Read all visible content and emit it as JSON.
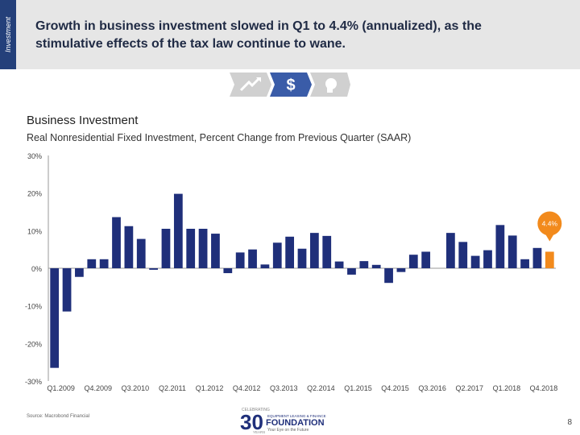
{
  "header": {
    "side_label": "Investment",
    "headline": "Growth in business investment slowed in Q1 to 4.4% (annualized), as the stimulative effects of the tax law continue to wane."
  },
  "nav": {
    "items": [
      {
        "icon": "trend-arrow-icon",
        "active": false
      },
      {
        "icon": "dollar-icon",
        "active": true
      },
      {
        "icon": "head-icon",
        "active": false
      }
    ],
    "active_color": "#3a5ca8",
    "inactive_color": "#cccccc"
  },
  "section": {
    "title": "Business Investment",
    "subtitle": "Real Nonresidential Fixed Investment, Percent Change from Previous Quarter (SAAR)"
  },
  "chart_data": {
    "type": "bar",
    "categories": [
      "Q1.2009",
      "Q2.2009",
      "Q3.2009",
      "Q4.2009",
      "Q1.2010",
      "Q2.2010",
      "Q3.2010",
      "Q4.2010",
      "Q1.2011",
      "Q2.2011",
      "Q3.2011",
      "Q4.2011",
      "Q1.2012",
      "Q2.2012",
      "Q3.2012",
      "Q4.2012",
      "Q1.2013",
      "Q2.2013",
      "Q3.2013",
      "Q4.2013",
      "Q1.2014",
      "Q2.2014",
      "Q3.2014",
      "Q4.2014",
      "Q1.2015",
      "Q2.2015",
      "Q3.2015",
      "Q4.2015",
      "Q1.2016",
      "Q2.2016",
      "Q3.2016",
      "Q4.2016",
      "Q1.2017",
      "Q2.2017",
      "Q3.2017",
      "Q4.2017",
      "Q1.2018",
      "Q2.2018",
      "Q3.2018",
      "Q4.2018",
      "Q1.2019"
    ],
    "tick_labels": [
      "Q1.2009",
      "Q4.2009",
      "Q3.2010",
      "Q2.2011",
      "Q1.2012",
      "Q4.2012",
      "Q3.2013",
      "Q2.2014",
      "Q1.2015",
      "Q4.2015",
      "Q3.2016",
      "Q2.2017",
      "Q1.2018",
      "Q4.2018"
    ],
    "values": [
      -26.5,
      -11.5,
      -2.3,
      2.4,
      2.4,
      13.6,
      11.2,
      7.8,
      -0.4,
      10.5,
      19.8,
      10.5,
      10.5,
      9.2,
      -1.3,
      4.2,
      5.0,
      1.0,
      6.8,
      8.4,
      5.2,
      9.4,
      8.6,
      1.8,
      -1.7,
      1.9,
      0.9,
      -3.9,
      -1.0,
      3.6,
      4.4,
      0,
      9.4,
      7.0,
      3.3,
      4.8,
      11.5,
      8.7,
      2.4,
      5.4,
      4.4
    ],
    "highlight_index": 40,
    "highlight_label": "4.4%",
    "y_ticks": [
      "30%",
      "20%",
      "10%",
      "0%",
      "-10%",
      "-20%",
      "-30%"
    ],
    "ylim": [
      -30,
      30
    ],
    "bar_color": "#1f2f7a",
    "highlight_color": "#f28a1c",
    "grid": false
  },
  "footer": {
    "source": "Source: Macrobond Financial",
    "logo_top": "CELEBRATING",
    "logo_number": "30",
    "logo_years": "YEARS",
    "logo_org": "EQUIPMENT LEASING & FINANCE",
    "logo_name": "FOUNDATION",
    "logo_tagline": "Your Eye on the Future",
    "page_number": "8"
  }
}
